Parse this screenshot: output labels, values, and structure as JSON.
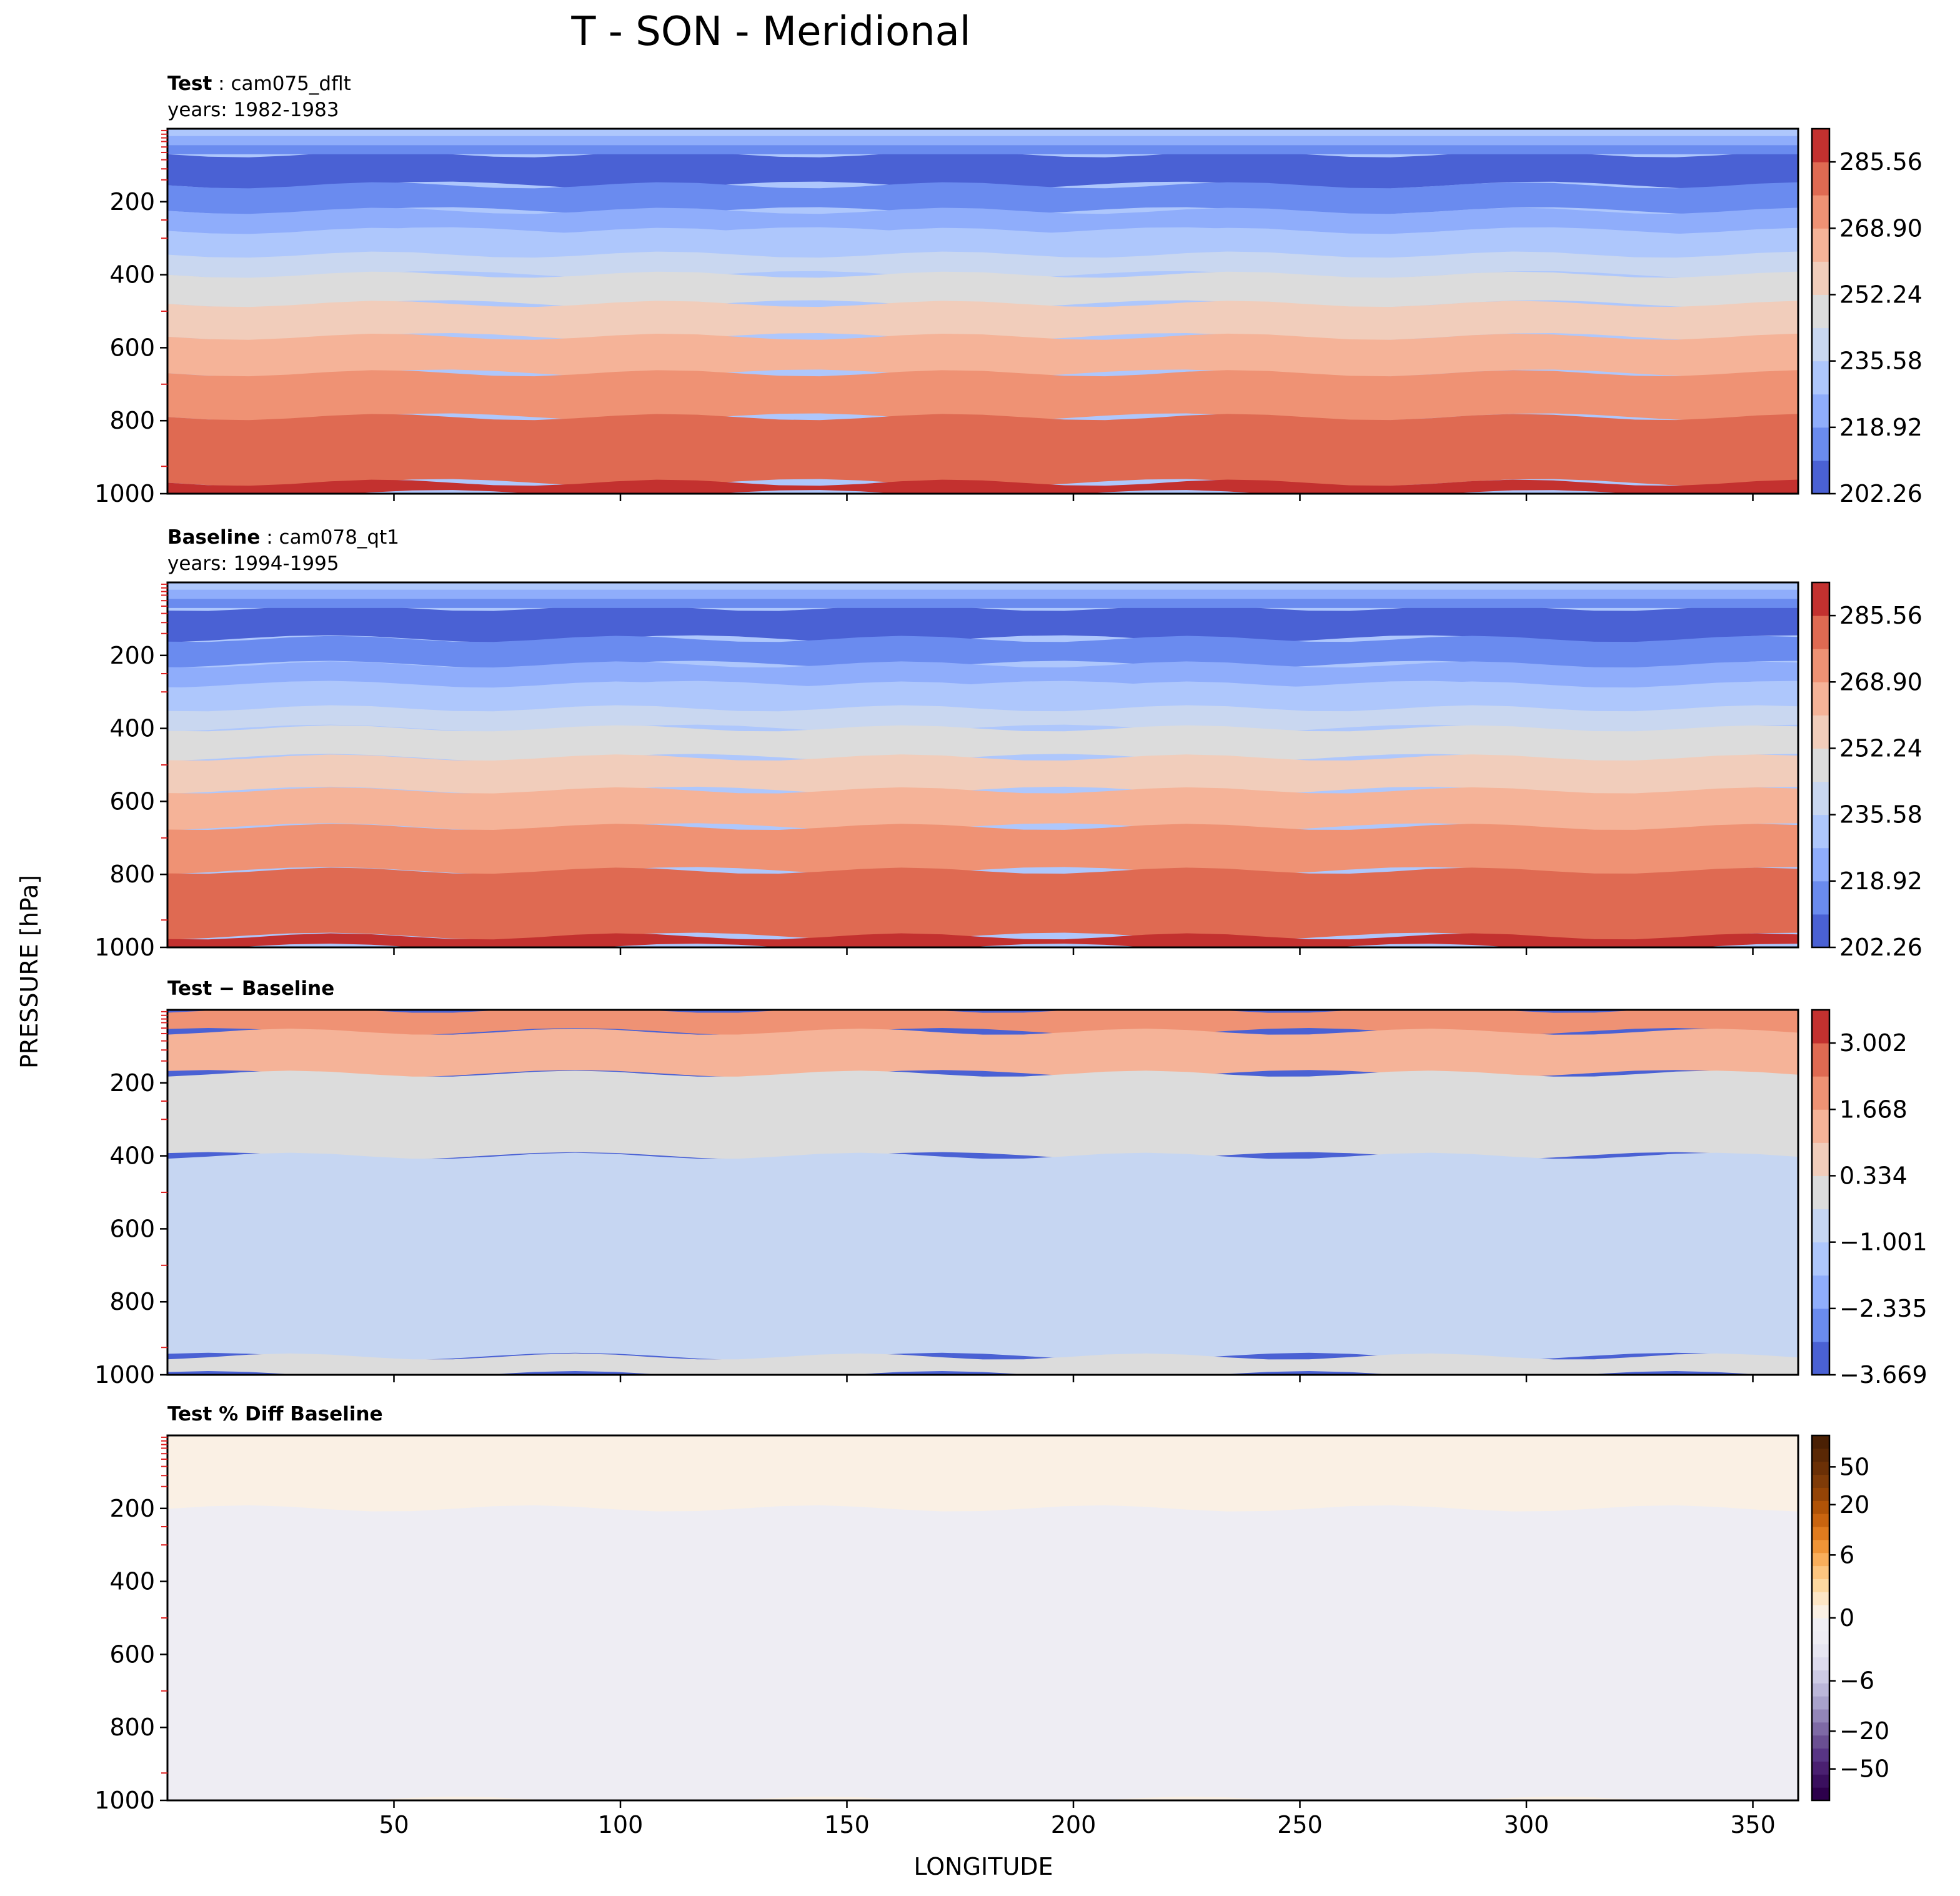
{
  "figure": {
    "title": "T - SON - Meridional",
    "ylabel": "PRESSURE [hPa]",
    "xlabel": "LONGITUDE"
  },
  "chart_data": [
    {
      "type": "contour",
      "title_bold": "Test",
      "title_rest": ": cam075_dflt",
      "subtitle": "years: 1982-1983",
      "variable": "T",
      "xlim": [
        0,
        360
      ],
      "ylim": [
        1000,
        0
      ],
      "x_ticks": [
        50,
        100,
        150,
        200,
        250,
        300,
        350
      ],
      "x_tick_labels_shown": false,
      "y_ticks": [
        200,
        400,
        600,
        800,
        1000
      ],
      "y_tick_labels": [
        "200",
        "400",
        "600",
        "800",
        "1000"
      ],
      "colorbar": {
        "min": 202.26,
        "max": 293.89,
        "levels": [
          202.26,
          210.59,
          218.92,
          227.25,
          235.58,
          243.91,
          252.24,
          260.57,
          268.9,
          277.23,
          285.56,
          293.89
        ],
        "tick_values": [
          202.26,
          218.92,
          235.58,
          252.24,
          268.9,
          285.56
        ],
        "tick_labels": [
          "202.26",
          "218.92",
          "235.58",
          "252.24",
          "268.90",
          "285.56"
        ],
        "colors": [
          "#4a61d4",
          "#6a8bef",
          "#8fadfb",
          "#aec7fc",
          "#c9d7f0",
          "#dcdcdc",
          "#f1cdbb",
          "#f5b398",
          "#ef9274",
          "#df6a52",
          "#c3312f"
        ]
      },
      "contour_bands_pressure_hPa": [
        {
          "band": 0,
          "top": 70,
          "bottom": 155
        },
        {
          "band": 1,
          "top": 155,
          "bottom": 225
        },
        {
          "band": 2,
          "top": 225,
          "bottom": 280
        },
        {
          "band": 3,
          "top": 280,
          "bottom": 345
        },
        {
          "band": 4,
          "top": 345,
          "bottom": 400
        },
        {
          "band": 5,
          "top": 400,
          "bottom": 480
        },
        {
          "band": 6,
          "top": 480,
          "bottom": 570
        },
        {
          "band": 7,
          "top": 570,
          "bottom": 670
        },
        {
          "band": 8,
          "top": 670,
          "bottom": 790
        },
        {
          "band": 9,
          "top": 790,
          "bottom": 970
        },
        {
          "band": 10,
          "top": 970,
          "bottom": 1000
        }
      ]
    },
    {
      "type": "contour",
      "title_bold": "Baseline",
      "title_rest": ": cam078_qt1",
      "subtitle": "years: 1994-1995",
      "variable": "T",
      "xlim": [
        0,
        360
      ],
      "ylim": [
        1000,
        0
      ],
      "x_ticks": [
        50,
        100,
        150,
        200,
        250,
        300,
        350
      ],
      "x_tick_labels_shown": false,
      "y_ticks": [
        200,
        400,
        600,
        800,
        1000
      ],
      "y_tick_labels": [
        "200",
        "400",
        "600",
        "800",
        "1000"
      ],
      "colorbar": {
        "min": 202.26,
        "max": 293.89,
        "levels": [
          202.26,
          210.59,
          218.92,
          227.25,
          235.58,
          243.91,
          252.24,
          260.57,
          268.9,
          277.23,
          285.56,
          293.89
        ],
        "tick_values": [
          202.26,
          218.92,
          235.58,
          252.24,
          268.9,
          285.56
        ],
        "tick_labels": [
          "202.26",
          "218.92",
          "235.58",
          "252.24",
          "268.90",
          "285.56"
        ],
        "colors": [
          "#4a61d4",
          "#6a8bef",
          "#8fadfb",
          "#aec7fc",
          "#c9d7f0",
          "#dcdcdc",
          "#f1cdbb",
          "#f5b398",
          "#ef9274",
          "#df6a52",
          "#c3312f"
        ]
      },
      "contour_bands_pressure_hPa": [
        {
          "band": 0,
          "top": 70,
          "bottom": 155
        },
        {
          "band": 1,
          "top": 155,
          "bottom": 225
        },
        {
          "band": 2,
          "top": 225,
          "bottom": 280
        },
        {
          "band": 3,
          "top": 280,
          "bottom": 345
        },
        {
          "band": 4,
          "top": 345,
          "bottom": 400
        },
        {
          "band": 5,
          "top": 400,
          "bottom": 480
        },
        {
          "band": 6,
          "top": 480,
          "bottom": 570
        },
        {
          "band": 7,
          "top": 570,
          "bottom": 670
        },
        {
          "band": 8,
          "top": 670,
          "bottom": 790
        },
        {
          "band": 9,
          "top": 790,
          "bottom": 970
        },
        {
          "band": 10,
          "top": 970,
          "bottom": 1000
        }
      ]
    },
    {
      "type": "contour",
      "title_bold": "Test − Baseline",
      "title_rest": "",
      "subtitle": "",
      "variable": "T difference",
      "xlim": [
        0,
        360
      ],
      "ylim": [
        1000,
        0
      ],
      "x_ticks": [
        50,
        100,
        150,
        200,
        250,
        300,
        350
      ],
      "x_tick_labels_shown": false,
      "y_ticks": [
        200,
        400,
        600,
        800,
        1000
      ],
      "y_tick_labels": [
        "200",
        "400",
        "600",
        "800",
        "1000"
      ],
      "colorbar": {
        "min": -3.669,
        "max": 3.669,
        "levels": [
          -3.669,
          -3.002,
          -2.335,
          -1.668,
          -1.001,
          -0.334,
          0.334,
          1.001,
          1.668,
          2.335,
          3.002,
          3.669
        ],
        "tick_values": [
          -3.669,
          -2.335,
          -1.001,
          0.334,
          1.668,
          3.002
        ],
        "tick_labels": [
          "−3.669",
          "−2.335",
          "−1.001",
          "0.334",
          "1.668",
          "3.002"
        ],
        "colors": [
          "#4a61d4",
          "#6a8bef",
          "#8fadfb",
          "#aec7fc",
          "#c6d6f2",
          "#dcdcdc",
          "#f1cdbb",
          "#f5b398",
          "#ef9274",
          "#df6a52",
          "#c3312f"
        ]
      },
      "contour_bands_pressure_hPa": [
        {
          "band": 8,
          "top": 0,
          "bottom": 60
        },
        {
          "band": 7,
          "top": 60,
          "bottom": 175
        },
        {
          "band": 5,
          "top": 175,
          "bottom": 400
        },
        {
          "band": 4,
          "top": 400,
          "bottom": 950
        },
        {
          "band": 5,
          "top": 950,
          "bottom": 1000
        }
      ]
    },
    {
      "type": "contour",
      "title_bold": "Test % Diff Baseline",
      "title_rest": "",
      "subtitle": "",
      "variable": "T percent difference",
      "xlim": [
        0,
        360
      ],
      "ylim": [
        1000,
        0
      ],
      "x_ticks": [
        50,
        100,
        150,
        200,
        250,
        300,
        350
      ],
      "x_tick_labels": [
        "50",
        "100",
        "150",
        "200",
        "250",
        "300",
        "350"
      ],
      "x_tick_labels_shown": true,
      "y_ticks": [
        200,
        400,
        600,
        800,
        1000
      ],
      "y_tick_labels": [
        "200",
        "400",
        "600",
        "800",
        "1000"
      ],
      "colorbar": {
        "scale": "symlog",
        "levels": [
          -100,
          -75,
          -50,
          -40,
          -30,
          -20,
          -15,
          -10,
          -8,
          -6,
          -4,
          -2,
          -1,
          -0.5,
          0,
          0.5,
          1,
          2,
          4,
          6,
          8,
          10,
          15,
          20,
          30,
          40,
          50,
          75,
          100
        ],
        "tick_values": [
          -50,
          -20,
          -6,
          0,
          6,
          20,
          50
        ],
        "tick_labels": [
          "−50",
          "−20",
          "−6",
          "0",
          "6",
          "20",
          "50"
        ],
        "colors": [
          "#2d004b",
          "#3a0f5e",
          "#4a2071",
          "#583585",
          "#6a4f92",
          "#7e6aa5",
          "#9386b8",
          "#a8a2cb",
          "#bbb7d9",
          "#cdcbe5",
          "#dddbed",
          "#e7e6f1",
          "#eeedf3",
          "#f0eff3",
          "#faf0e4",
          "#fde6c6",
          "#fdd8a0",
          "#fdc57f",
          "#f9ae5b",
          "#ef9437",
          "#e07b1e",
          "#c9640f",
          "#b05307",
          "#944406",
          "#7f3b08",
          "#6b3006",
          "#5a2805",
          "#4a2004"
        ]
      },
      "contour_bands_pressure_hPa": [
        {
          "band": "0 to 0.5",
          "top": 0,
          "bottom": 200
        },
        {
          "band": "-0.5 to 0",
          "top": 200,
          "bottom": 1000
        }
      ]
    }
  ]
}
